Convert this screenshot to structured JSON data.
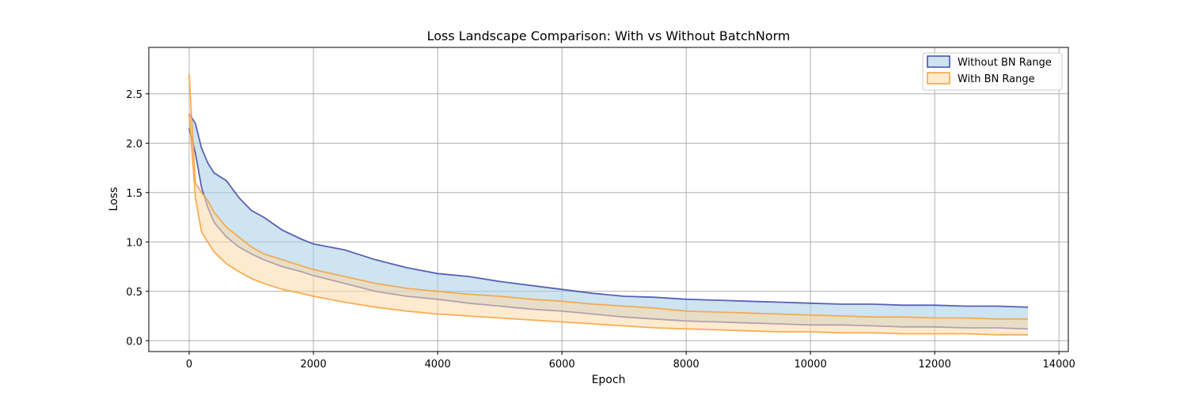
{
  "chart_data": {
    "type": "area",
    "title": "Loss Landscape Comparison: With vs Without BatchNorm",
    "xlabel": "Epoch",
    "ylabel": "Loss",
    "xlim": [
      -650,
      14150
    ],
    "ylim": [
      -0.11,
      2.97
    ],
    "xticks": [
      0,
      2000,
      4000,
      6000,
      8000,
      10000,
      12000,
      14000
    ],
    "xtick_labels": [
      "0",
      "2000",
      "4000",
      "6000",
      "8000",
      "10000",
      "12000",
      "14000"
    ],
    "yticks": [
      0.0,
      0.5,
      1.0,
      1.5,
      2.0,
      2.5
    ],
    "ytick_labels": [
      "0.0",
      "0.5",
      "1.0",
      "1.5",
      "2.0",
      "2.5"
    ],
    "grid": true,
    "legend_position": "top-right",
    "series": [
      {
        "name": "Without BN Range",
        "fill_color": "#a6cee3",
        "edge_color": "#3f48aa",
        "x": [
          0,
          100,
          200,
          300,
          400,
          600,
          800,
          1000,
          1200,
          1500,
          1800,
          2000,
          2500,
          3000,
          3500,
          4000,
          4500,
          5000,
          5500,
          6000,
          6500,
          7000,
          7500,
          8000,
          8500,
          9000,
          9500,
          10000,
          10500,
          11000,
          11500,
          12000,
          12500,
          13000,
          13500
        ],
        "upper": [
          2.3,
          2.2,
          1.95,
          1.8,
          1.7,
          1.62,
          1.45,
          1.32,
          1.25,
          1.12,
          1.03,
          0.98,
          0.92,
          0.82,
          0.74,
          0.68,
          0.65,
          0.6,
          0.56,
          0.52,
          0.48,
          0.45,
          0.44,
          0.42,
          0.41,
          0.4,
          0.39,
          0.38,
          0.37,
          0.37,
          0.36,
          0.36,
          0.35,
          0.35,
          0.34
        ],
        "lower": [
          2.15,
          1.9,
          1.55,
          1.35,
          1.2,
          1.05,
          0.95,
          0.88,
          0.82,
          0.75,
          0.7,
          0.66,
          0.58,
          0.5,
          0.45,
          0.42,
          0.38,
          0.35,
          0.32,
          0.3,
          0.27,
          0.24,
          0.22,
          0.2,
          0.19,
          0.18,
          0.17,
          0.16,
          0.16,
          0.15,
          0.14,
          0.14,
          0.13,
          0.13,
          0.12
        ]
      },
      {
        "name": "With BN Range",
        "fill_color": "#fdd9a8",
        "edge_color": "#f7a13a",
        "x": [
          0,
          100,
          200,
          300,
          400,
          600,
          800,
          1000,
          1200,
          1500,
          1800,
          2000,
          2500,
          3000,
          3500,
          4000,
          4500,
          5000,
          5500,
          6000,
          6500,
          7000,
          7500,
          8000,
          8500,
          9000,
          9500,
          10000,
          10500,
          11000,
          11500,
          12000,
          12500,
          13000,
          13500
        ],
        "upper": [
          2.7,
          1.6,
          1.5,
          1.42,
          1.3,
          1.15,
          1.05,
          0.95,
          0.88,
          0.82,
          0.76,
          0.72,
          0.65,
          0.58,
          0.53,
          0.5,
          0.47,
          0.45,
          0.42,
          0.4,
          0.37,
          0.35,
          0.33,
          0.3,
          0.29,
          0.28,
          0.27,
          0.26,
          0.25,
          0.24,
          0.24,
          0.23,
          0.23,
          0.22,
          0.22
        ],
        "lower": [
          2.3,
          1.45,
          1.1,
          1.0,
          0.9,
          0.78,
          0.7,
          0.63,
          0.58,
          0.52,
          0.48,
          0.45,
          0.39,
          0.34,
          0.3,
          0.27,
          0.25,
          0.23,
          0.21,
          0.19,
          0.17,
          0.15,
          0.13,
          0.12,
          0.11,
          0.1,
          0.09,
          0.09,
          0.08,
          0.08,
          0.07,
          0.07,
          0.07,
          0.06,
          0.06
        ]
      }
    ]
  }
}
